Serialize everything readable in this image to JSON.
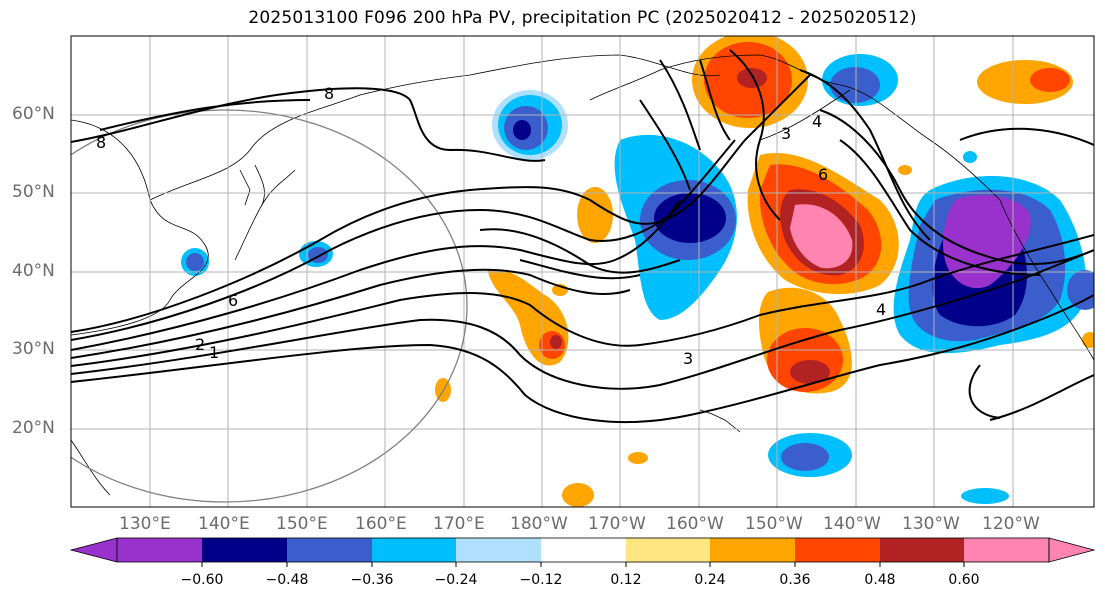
{
  "title": "2025013100 F096 200 hPa PV, precipitation PC (2025020412 - 2025020512)",
  "lat_labels": [
    "60°N",
    "50°N",
    "40°N",
    "30°N",
    "20°N"
  ],
  "lon_labels": [
    "130°E",
    "140°E",
    "150°E",
    "160°E",
    "170°E",
    "180°W",
    "170°W",
    "160°W",
    "150°W",
    "140°W",
    "130°W",
    "120°W"
  ],
  "contour_labels": [
    "8",
    "8",
    "6",
    "2",
    "1",
    "3",
    "4",
    "6",
    "3",
    "4"
  ],
  "colorbar": {
    "tick_labels": [
      "−0.60",
      "−0.48",
      "−0.36",
      "−0.24",
      "−0.12",
      "0.12",
      "0.24",
      "0.36",
      "0.48",
      "0.60"
    ],
    "colors": [
      "#9932cc",
      "#00008b",
      "#3a5fcd",
      "#00bfff",
      "#b0e0ff",
      "#ffffff",
      "#ffe680",
      "#ffa500",
      "#ff4500",
      "#b22222",
      "#ff85b0"
    ]
  },
  "colors": {
    "positive_light": "#ffe680",
    "positive_orange": "#ffa500",
    "positive_red": "#ff4500",
    "positive_darkred": "#b22222",
    "positive_pink": "#ff85b0",
    "negative_light": "#b0e0ff",
    "negative_cyan": "#00bfff",
    "negative_blue": "#3a5fcd",
    "negative_navy": "#00008b",
    "negative_purple": "#9932cc"
  }
}
